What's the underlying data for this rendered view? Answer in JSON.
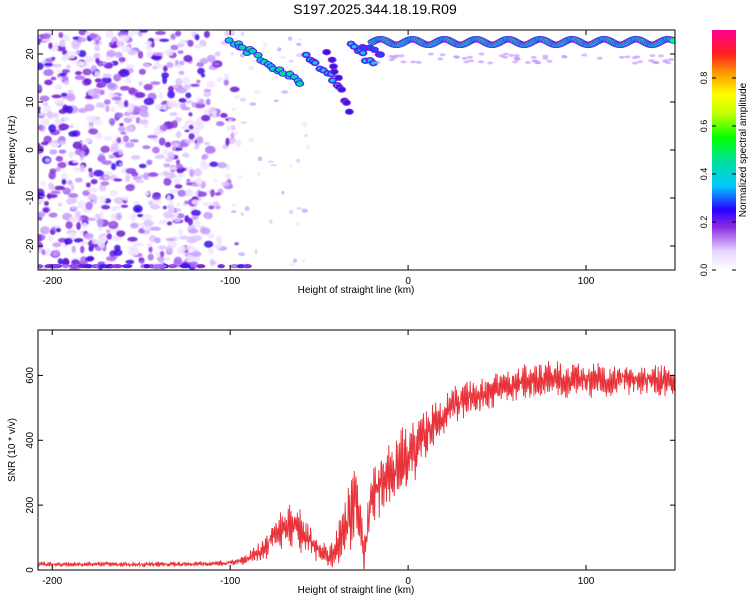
{
  "title": "S197.2025.344.18.19.R09",
  "chart_data": [
    {
      "type": "heatmap",
      "xlabel": "Height of straight line (km)",
      "ylabel": "Frequency (Hz)",
      "xlim": [
        -208,
        150
      ],
      "ylim": [
        -25,
        25
      ],
      "x_ticks": [
        -200,
        -100,
        0,
        100
      ],
      "y_ticks": [
        -20,
        -10,
        0,
        10,
        20
      ],
      "colorbar": {
        "label": "Normalized spectral amplitude",
        "range": [
          0,
          1
        ],
        "ticks": [
          0.0,
          0.2,
          0.4,
          0.6,
          0.8
        ]
      },
      "grid": false
    },
    {
      "type": "line",
      "xlabel": "Height of straight line (km)",
      "ylabel": "SNR (10 * v/v)",
      "xlim": [
        -208,
        150
      ],
      "ylim": [
        0,
        740
      ],
      "x_ticks": [
        -200,
        -100,
        0,
        100
      ],
      "y_ticks": [
        0,
        200,
        400,
        600
      ],
      "line_color": "#e8333a",
      "grid": false,
      "series": [
        {
          "x": [
            -208,
            -190,
            -170,
            -150,
            -130,
            -110,
            -100,
            -90,
            -80,
            -75,
            -70,
            -65,
            -60,
            -55,
            -50,
            -45,
            -40,
            -35,
            -30,
            -27,
            -25,
            -20,
            -15,
            -10,
            -5,
            0,
            5,
            10,
            15,
            20,
            30,
            40,
            50,
            60,
            70,
            80,
            90,
            100,
            110,
            120,
            130,
            140,
            150
          ],
          "y": [
            18,
            17,
            18,
            17,
            18,
            20,
            22,
            35,
            70,
            110,
            130,
            150,
            120,
            90,
            60,
            40,
            70,
            130,
            200,
            160,
            30,
            230,
            280,
            300,
            330,
            340,
            380,
            420,
            450,
            480,
            520,
            540,
            560,
            575,
            580,
            590,
            585,
            590,
            585,
            590,
            590,
            585,
            590
          ],
          "amplitude": [
            8,
            8,
            8,
            8,
            8,
            8,
            10,
            20,
            40,
            55,
            70,
            80,
            70,
            50,
            40,
            40,
            70,
            110,
            130,
            110,
            60,
            110,
            110,
            110,
            110,
            110,
            100,
            90,
            80,
            70,
            60,
            60,
            55,
            55,
            60,
            60,
            60,
            60,
            55,
            55,
            55,
            55,
            55
          ]
        }
      ]
    }
  ]
}
